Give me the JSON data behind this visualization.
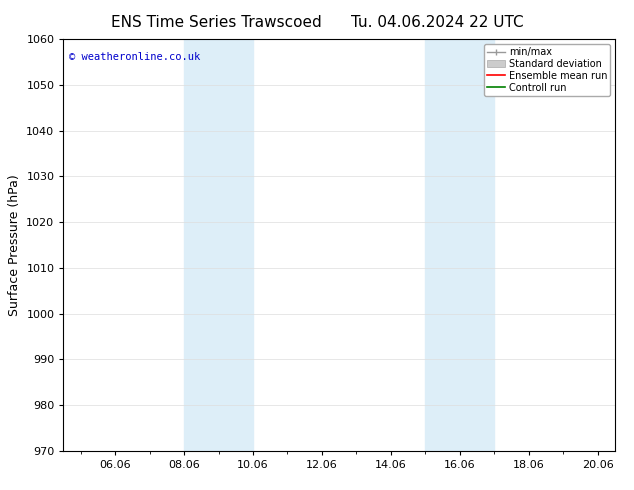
{
  "title_left": "ENS Time Series Trawscoed",
  "title_right": "Tu. 04.06.2024 22 UTC",
  "ylabel": "Surface Pressure (hPa)",
  "ylim": [
    970,
    1060
  ],
  "yticks": [
    970,
    980,
    990,
    1000,
    1010,
    1020,
    1030,
    1040,
    1050,
    1060
  ],
  "xlim": [
    4.5,
    20.5
  ],
  "xtick_labels": [
    "06.06",
    "08.06",
    "10.06",
    "12.06",
    "14.06",
    "16.06",
    "18.06",
    "20.06"
  ],
  "xtick_positions": [
    6,
    8,
    10,
    12,
    14,
    16,
    18,
    20
  ],
  "shaded_bands": [
    {
      "x_start": 8.0,
      "x_end": 9.0
    },
    {
      "x_start": 9.0,
      "x_end": 10.0
    },
    {
      "x_start": 15.0,
      "x_end": 16.0
    },
    {
      "x_start": 16.0,
      "x_end": 17.0
    }
  ],
  "shaded_colors": [
    "#d6eaf8",
    "#ddeeff",
    "#d6eaf8",
    "#ddeeff"
  ],
  "background_color": "#ffffff",
  "grid_color": "#dddddd",
  "watermark_text": "© weatheronline.co.uk",
  "watermark_color": "#0000cc",
  "title_fontsize": 11,
  "axis_fontsize": 9,
  "tick_fontsize": 8,
  "legend_minmax_color": "#999999",
  "legend_std_color": "#cccccc",
  "legend_ens_color": "#ff0000",
  "legend_ctrl_color": "#008000"
}
